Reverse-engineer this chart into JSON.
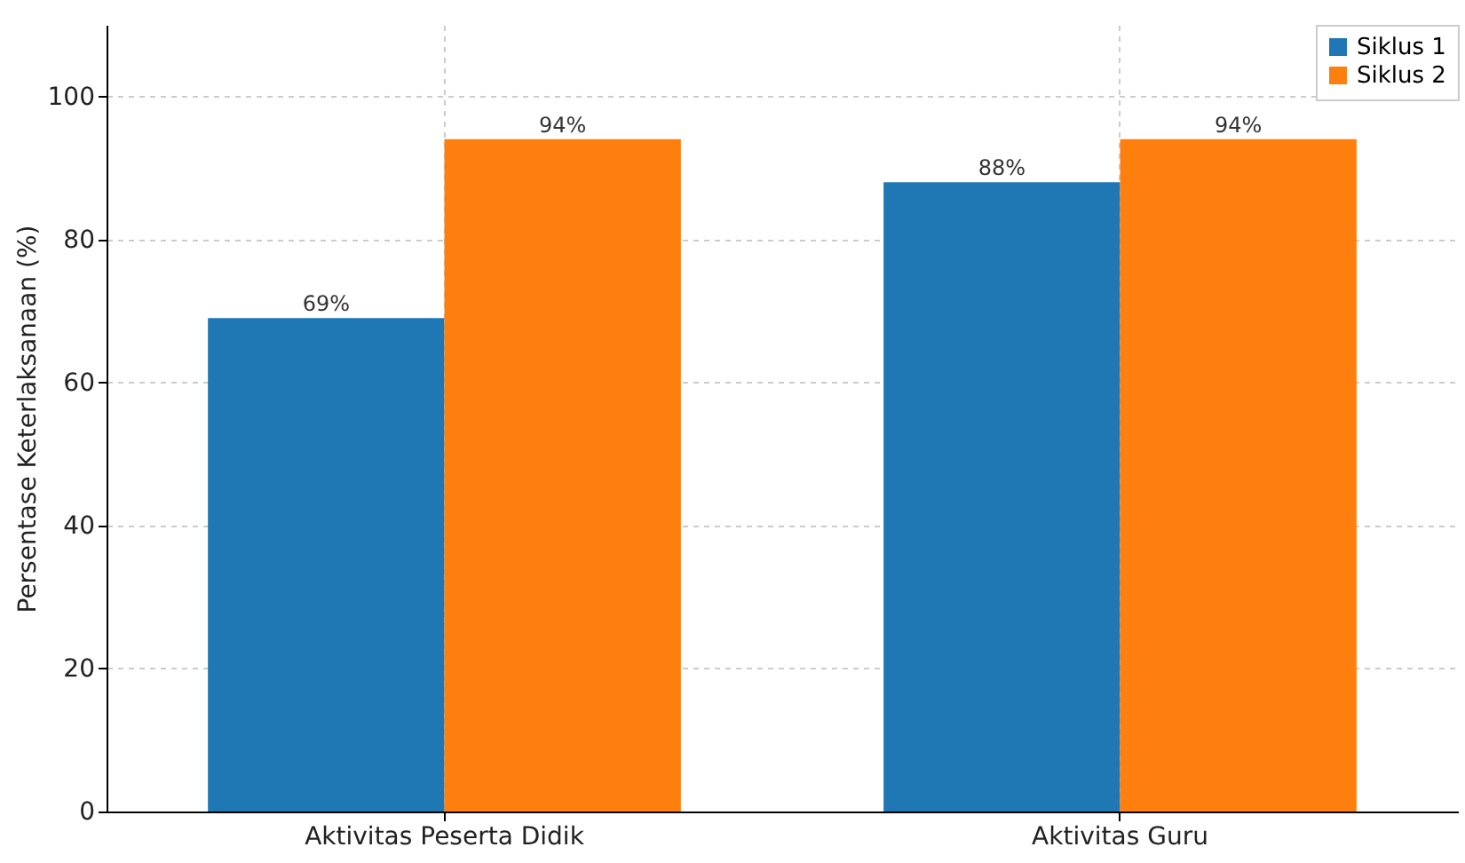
{
  "chart_data": {
    "type": "bar",
    "ylabel": "Persentase Keterlaksanaan (%)",
    "categories": [
      "Aktivitas Peserta Didik",
      "Aktivitas Guru"
    ],
    "series": [
      {
        "name": "Siklus 1",
        "color": "#1f77b4",
        "values": [
          69,
          88
        ],
        "value_labels": [
          "69%",
          "88%"
        ]
      },
      {
        "name": "Siklus 2",
        "color": "#ff7f0e",
        "values": [
          94,
          94
        ],
        "value_labels": [
          "94%",
          "94%"
        ]
      }
    ],
    "ylim": [
      0,
      110
    ],
    "yticks": [
      0,
      20,
      40,
      60,
      80,
      100
    ],
    "grid": true,
    "legend": "top right"
  }
}
